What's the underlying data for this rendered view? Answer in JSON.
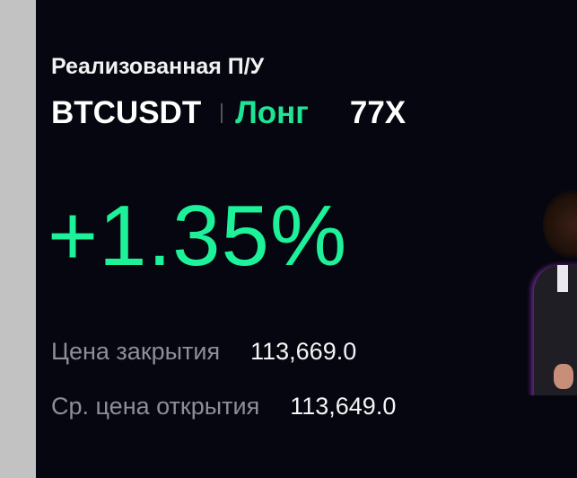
{
  "card": {
    "title": "Реализованная П/У",
    "symbol": "BTCUSDT",
    "side": "Лонг",
    "leverage": "77X",
    "pnl_percent": "+1.35%",
    "close_price_label": "Цена закрытия",
    "close_price": "113,669.0",
    "avg_open_price_label": "Ср. цена открытия",
    "avg_open_price": "113,649.0",
    "colors": {
      "positive": "#1df29a",
      "background": "#05060f"
    }
  }
}
